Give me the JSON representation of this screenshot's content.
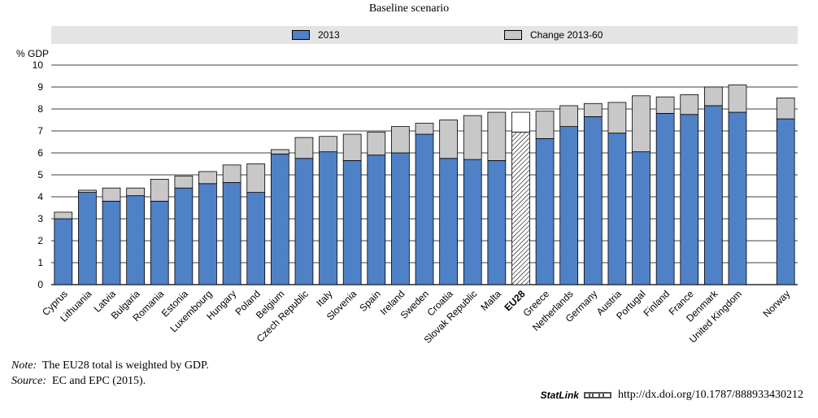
{
  "chart_data": {
    "type": "bar",
    "stacked": true,
    "title": "Baseline scenario",
    "ylabel": "% GDP",
    "ylim": [
      0,
      10
    ],
    "yticks": [
      0,
      1,
      2,
      3,
      4,
      5,
      6,
      7,
      8,
      9,
      10
    ],
    "categories": [
      "Cyprus",
      "Lithuania",
      "Latvia",
      "Bulgaria",
      "Romania",
      "Estonia",
      "Luxembourg",
      "Hungary",
      "Poland",
      "Belgium",
      "Czech Republic",
      "Italy",
      "Slovenia",
      "Spain",
      "Ireland",
      "Sweden",
      "Croatia",
      "Slovak Republic",
      "Malta",
      "EU28",
      "Greece",
      "Netherlands",
      "Germany",
      "Austria",
      "Portugal",
      "Finland",
      "France",
      "Denmark",
      "United Kingdom",
      "Norway"
    ],
    "highlight_category": "EU28",
    "series": [
      {
        "name": "2013",
        "color": "#4f81c7",
        "values": [
          3.0,
          4.2,
          3.8,
          4.05,
          3.8,
          4.4,
          4.6,
          4.65,
          4.2,
          5.95,
          5.75,
          6.05,
          5.65,
          5.9,
          6.0,
          6.85,
          5.75,
          5.7,
          5.65,
          6.95,
          6.65,
          7.2,
          7.65,
          6.9,
          6.05,
          7.8,
          7.75,
          8.15,
          7.85,
          7.55
        ]
      },
      {
        "name": "Change 2013-60",
        "color": "#c8c8c8",
        "values": [
          0.3,
          0.1,
          0.6,
          0.35,
          1.0,
          0.55,
          0.55,
          0.8,
          1.3,
          0.2,
          0.95,
          0.7,
          1.2,
          1.05,
          1.2,
          0.5,
          1.75,
          2.0,
          2.2,
          0.9,
          1.25,
          0.95,
          0.6,
          1.4,
          2.55,
          0.75,
          0.9,
          0.85,
          1.25,
          0.95
        ]
      }
    ]
  },
  "notes": {
    "note_label": "Note:",
    "note_text": "The EU28 total is weighted by GDP.",
    "source_label": "Source:",
    "source_text": "EC and EPC (2015)."
  },
  "statlink": {
    "label": "StatLink",
    "url": "http://dx.doi.org/10.1787/888933430212"
  }
}
